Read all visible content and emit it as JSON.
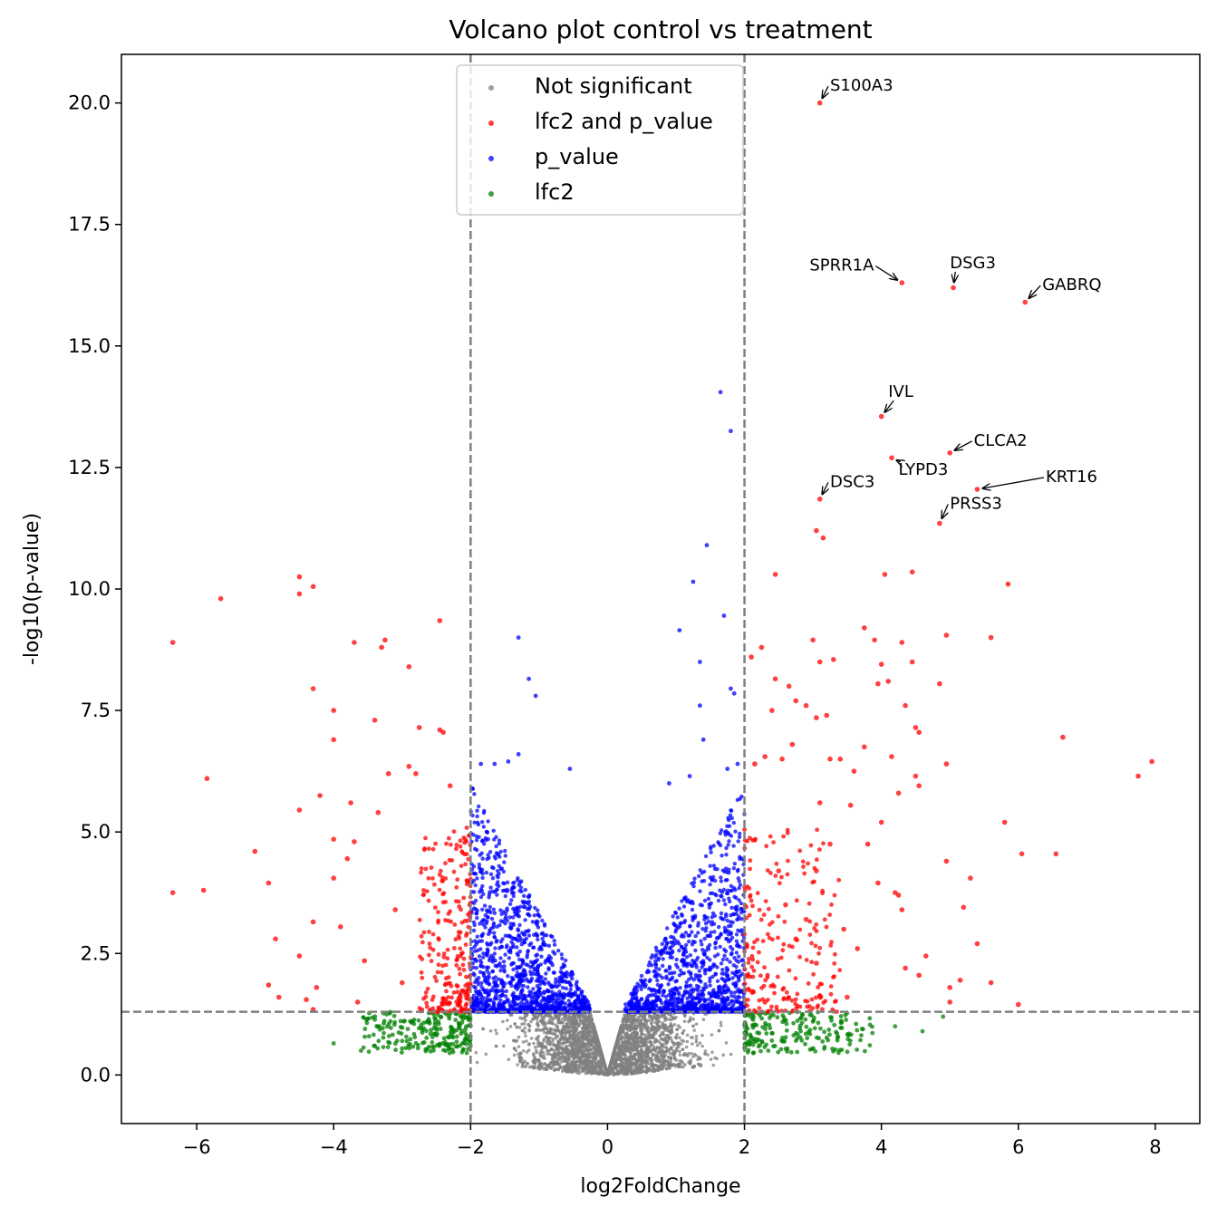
{
  "chart_data": {
    "type": "scatter",
    "title": "Volcano plot control vs treatment",
    "xlabel": "log2FoldChange",
    "ylabel": "-log10(p-value)",
    "xlim": [
      -7.1,
      8.65
    ],
    "ylim": [
      -1.0,
      21.0
    ],
    "xticks": [
      -6,
      -4,
      -2,
      0,
      2,
      4,
      6,
      8
    ],
    "xtick_labels": [
      "−6",
      "−4",
      "−2",
      "0",
      "2",
      "4",
      "6",
      "8"
    ],
    "yticks": [
      0.0,
      2.5,
      5.0,
      7.5,
      10.0,
      12.5,
      15.0,
      17.5,
      20.0
    ],
    "ytick_labels": [
      "0.0",
      "2.5",
      "5.0",
      "7.5",
      "10.0",
      "12.5",
      "15.0",
      "17.5",
      "20.0"
    ],
    "thresholds": {
      "lfc": [
        -2,
        2
      ],
      "neg_log10_p": 1.3
    },
    "legend_position": "upper center",
    "legend": [
      {
        "name": "Not significant",
        "color": "#808080"
      },
      {
        "name": "lfc2 and p_value",
        "color": "#ff0000"
      },
      {
        "name": "p_value",
        "color": "#0000ff"
      },
      {
        "name": "lfc2",
        "color": "#008000"
      }
    ],
    "series": [
      {
        "name": "lfc2 and p_value",
        "color": "#ff0000",
        "points": [
          [
            3.1,
            20.0
          ],
          [
            4.3,
            16.3
          ],
          [
            5.05,
            16.2
          ],
          [
            6.1,
            15.9
          ],
          [
            4.0,
            13.55
          ],
          [
            5.0,
            12.8
          ],
          [
            4.15,
            12.7
          ],
          [
            5.4,
            12.05
          ],
          [
            3.1,
            11.85
          ],
          [
            4.85,
            11.35
          ],
          [
            3.05,
            11.2
          ],
          [
            3.15,
            11.05
          ],
          [
            -4.5,
            10.25
          ],
          [
            -4.5,
            9.9
          ],
          [
            -4.3,
            10.05
          ],
          [
            -5.65,
            9.8
          ],
          [
            -6.35,
            8.9
          ],
          [
            -3.7,
            8.9
          ],
          [
            -3.25,
            8.95
          ],
          [
            -3.3,
            8.8
          ],
          [
            -2.45,
            9.35
          ],
          [
            -2.9,
            8.4
          ],
          [
            -4.3,
            7.95
          ],
          [
            -3.4,
            7.3
          ],
          [
            -4.0,
            7.5
          ],
          [
            -2.75,
            7.15
          ],
          [
            -2.45,
            7.1
          ],
          [
            -2.4,
            7.05
          ],
          [
            -4.0,
            6.9
          ],
          [
            -5.85,
            6.1
          ],
          [
            -3.2,
            6.2
          ],
          [
            -2.9,
            6.35
          ],
          [
            -2.8,
            6.2
          ],
          [
            -2.3,
            5.95
          ],
          [
            -4.2,
            5.75
          ],
          [
            -4.5,
            5.45
          ],
          [
            -3.75,
            5.6
          ],
          [
            -3.35,
            5.4
          ],
          [
            -5.15,
            4.6
          ],
          [
            -4.95,
            3.95
          ],
          [
            -6.35,
            3.75
          ],
          [
            -5.9,
            3.8
          ],
          [
            -4.0,
            4.85
          ],
          [
            -3.7,
            4.8
          ],
          [
            -3.8,
            4.45
          ],
          [
            -4.0,
            4.05
          ],
          [
            -4.85,
            2.8
          ],
          [
            -4.5,
            2.45
          ],
          [
            -4.95,
            1.85
          ],
          [
            -4.8,
            1.6
          ],
          [
            -4.3,
            3.15
          ],
          [
            -4.25,
            1.8
          ],
          [
            -4.4,
            1.55
          ],
          [
            -4.3,
            1.35
          ],
          [
            -3.9,
            3.05
          ],
          [
            -3.55,
            2.35
          ],
          [
            -3.65,
            1.5
          ],
          [
            -3.0,
            1.9
          ],
          [
            -3.1,
            3.4
          ],
          [
            2.45,
            10.3
          ],
          [
            2.1,
            8.6
          ],
          [
            2.25,
            8.8
          ],
          [
            2.65,
            8.0
          ],
          [
            2.45,
            8.15
          ],
          [
            2.75,
            7.7
          ],
          [
            2.4,
            7.5
          ],
          [
            3.0,
            8.95
          ],
          [
            3.1,
            8.5
          ],
          [
            3.3,
            8.55
          ],
          [
            3.75,
            9.2
          ],
          [
            3.9,
            8.95
          ],
          [
            4.0,
            8.45
          ],
          [
            4.05,
            10.3
          ],
          [
            4.45,
            10.35
          ],
          [
            4.3,
            8.9
          ],
          [
            4.45,
            8.5
          ],
          [
            4.85,
            8.05
          ],
          [
            4.95,
            9.05
          ],
          [
            5.85,
            10.1
          ],
          [
            5.6,
            9.0
          ],
          [
            4.1,
            8.1
          ],
          [
            3.95,
            8.05
          ],
          [
            4.35,
            7.6
          ],
          [
            4.5,
            7.15
          ],
          [
            4.55,
            7.05
          ],
          [
            4.15,
            6.55
          ],
          [
            3.4,
            6.5
          ],
          [
            3.6,
            6.25
          ],
          [
            3.75,
            6.75
          ],
          [
            2.9,
            7.6
          ],
          [
            3.05,
            7.35
          ],
          [
            3.2,
            7.4
          ],
          [
            3.25,
            6.5
          ],
          [
            2.7,
            6.8
          ],
          [
            2.55,
            6.5
          ],
          [
            2.3,
            6.55
          ],
          [
            2.15,
            6.4
          ],
          [
            6.65,
            6.95
          ],
          [
            7.75,
            6.15
          ],
          [
            7.95,
            6.45
          ],
          [
            6.55,
            4.55
          ],
          [
            6.05,
            4.55
          ],
          [
            5.8,
            5.2
          ],
          [
            5.3,
            4.05
          ],
          [
            5.2,
            3.45
          ],
          [
            5.4,
            2.7
          ],
          [
            4.95,
            4.4
          ],
          [
            5.0,
            1.8
          ],
          [
            5.0,
            1.5
          ],
          [
            5.15,
            1.95
          ],
          [
            4.35,
            2.2
          ],
          [
            4.3,
            3.4
          ],
          [
            4.2,
            3.75
          ],
          [
            4.25,
            3.7
          ],
          [
            6.0,
            1.45
          ],
          [
            5.6,
            1.9
          ],
          [
            4.65,
            2.45
          ],
          [
            4.55,
            2.05
          ],
          [
            2.3,
            1.5
          ],
          [
            2.5,
            4.2
          ],
          [
            2.6,
            3.5
          ],
          [
            2.9,
            3.2
          ],
          [
            3.25,
            4.75
          ],
          [
            3.45,
            3.0
          ],
          [
            3.65,
            2.6
          ],
          [
            3.8,
            4.75
          ],
          [
            3.95,
            3.95
          ],
          [
            3.05,
            4.2
          ],
          [
            3.55,
            5.55
          ],
          [
            3.1,
            5.6
          ],
          [
            4.5,
            6.15
          ],
          [
            4.0,
            5.2
          ],
          [
            4.25,
            5.8
          ],
          [
            4.55,
            5.95
          ],
          [
            4.95,
            6.4
          ],
          [
            3.5,
            1.6
          ],
          [
            3.05,
            2.3
          ],
          [
            2.75,
            2.8
          ]
        ]
      }
    ],
    "annotations": [
      {
        "label": "S100A3",
        "point": [
          3.1,
          20.0
        ],
        "text_at": [
          3.25,
          20.25
        ]
      },
      {
        "label": "SPRR1A",
        "point": [
          4.3,
          16.3
        ],
        "text_at": [
          2.95,
          16.55
        ]
      },
      {
        "label": "DSG3",
        "point": [
          5.05,
          16.2
        ],
        "text_at": [
          5.0,
          16.6
        ]
      },
      {
        "label": "GABRQ",
        "point": [
          6.1,
          15.9
        ],
        "text_at": [
          6.35,
          16.15
        ]
      },
      {
        "label": "IVL",
        "point": [
          4.0,
          13.55
        ],
        "text_at": [
          4.1,
          13.95
        ]
      },
      {
        "label": "CLCA2",
        "point": [
          5.0,
          12.8
        ],
        "text_at": [
          5.35,
          12.95
        ]
      },
      {
        "label": "LYPD3",
        "point": [
          4.15,
          12.7
        ],
        "text_at": [
          4.25,
          12.35
        ]
      },
      {
        "label": "KRT16",
        "point": [
          5.4,
          12.05
        ],
        "text_at": [
          6.4,
          12.2
        ]
      },
      {
        "label": "DSC3",
        "point": [
          3.1,
          11.85
        ],
        "text_at": [
          3.25,
          12.1
        ]
      },
      {
        "label": "PRSS3",
        "point": [
          4.85,
          11.35
        ],
        "text_at": [
          5.0,
          11.65
        ]
      }
    ],
    "distribution": {
      "Not significant": "dense gray V-shaped cloud, |lfc| < 2 or -log10(p) < 1.3, y from 0 to ~1.3",
      "p_value": "dense blue cloud, |lfc| < 2 and -log10(p) between 1.3 and ~6.5, sparse points up to ~14",
      "lfc2": "green band, |lfc| between 2 and ~5, -log10(p) between ~0.5 and 1.3"
    }
  }
}
